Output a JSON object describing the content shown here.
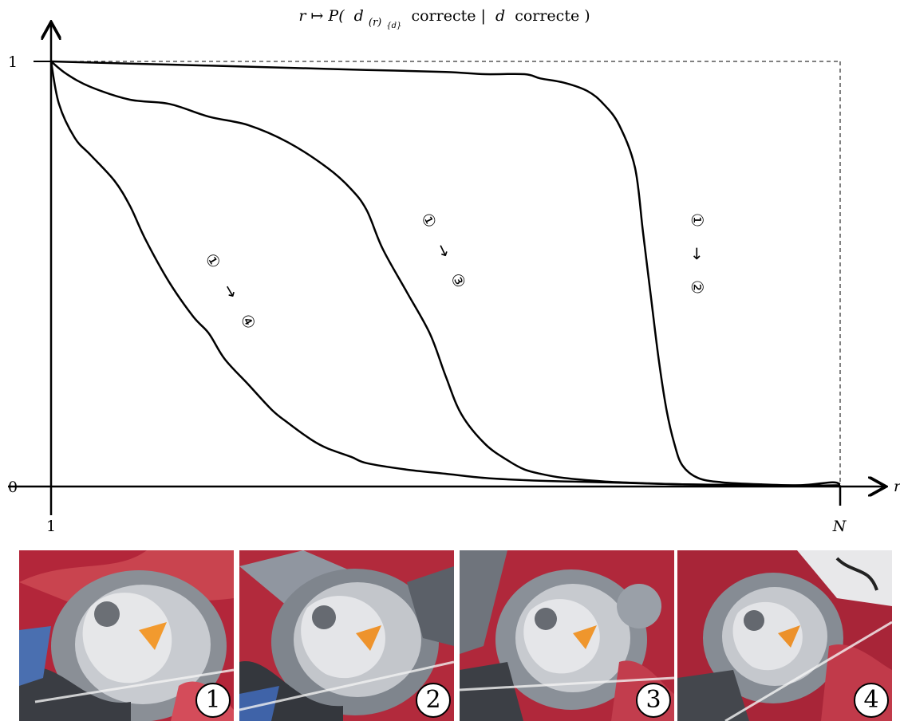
{
  "chart_data": {
    "type": "line",
    "title": {
      "map": "r ↦ P(",
      "d": "d",
      "sub_r": "(r)",
      "sub_d": "{d}",
      "mid": "correcte |",
      "d2": "d",
      "end": "correcte )"
    },
    "xlabel": "r",
    "x_ticks": [
      "1",
      "N"
    ],
    "y_ticks": [
      "0",
      "1"
    ],
    "xlim": [
      0,
      1
    ],
    "ylim": [
      0,
      1
    ],
    "grid": false,
    "series": [
      {
        "label_from": "①",
        "label_arrow": "→",
        "label_to": "④",
        "x": [
          0,
          0.01,
          0.03,
          0.05,
          0.08,
          0.1,
          0.12,
          0.15,
          0.18,
          0.2,
          0.22,
          0.25,
          0.28,
          0.3,
          0.33,
          0.35,
          0.38,
          0.4,
          0.45,
          0.5,
          0.55,
          0.6,
          0.65,
          0.7,
          0.8,
          0.9,
          0.95,
          1.0
        ],
        "y": [
          1.0,
          0.9,
          0.82,
          0.78,
          0.72,
          0.66,
          0.58,
          0.48,
          0.4,
          0.36,
          0.3,
          0.24,
          0.18,
          0.15,
          0.11,
          0.09,
          0.07,
          0.055,
          0.04,
          0.03,
          0.02,
          0.015,
          0.012,
          0.01,
          0.005,
          0.003,
          0.002,
          0.003
        ]
      },
      {
        "label_from": "①",
        "label_arrow": "→",
        "label_to": "③",
        "x": [
          0,
          0.02,
          0.05,
          0.1,
          0.15,
          0.2,
          0.25,
          0.3,
          0.35,
          0.38,
          0.4,
          0.42,
          0.45,
          0.48,
          0.5,
          0.52,
          0.55,
          0.58,
          0.6,
          0.62,
          0.65,
          0.7,
          0.75,
          0.8,
          0.9,
          1.0
        ],
        "y": [
          1.0,
          0.97,
          0.94,
          0.91,
          0.9,
          0.87,
          0.85,
          0.81,
          0.75,
          0.7,
          0.65,
          0.56,
          0.46,
          0.36,
          0.26,
          0.17,
          0.1,
          0.06,
          0.04,
          0.03,
          0.02,
          0.012,
          0.008,
          0.005,
          0.003,
          0.002
        ]
      },
      {
        "label_from": "①",
        "label_arrow": "→",
        "label_to": "②",
        "x": [
          0,
          0.1,
          0.2,
          0.3,
          0.4,
          0.5,
          0.55,
          0.6,
          0.62,
          0.65,
          0.68,
          0.7,
          0.72,
          0.74,
          0.75,
          0.76,
          0.77,
          0.78,
          0.79,
          0.8,
          0.82,
          0.85,
          0.9,
          0.95,
          0.99,
          1.0
        ],
        "y": [
          1.0,
          0.995,
          0.99,
          0.985,
          0.98,
          0.975,
          0.97,
          0.97,
          0.96,
          0.95,
          0.93,
          0.9,
          0.85,
          0.75,
          0.6,
          0.45,
          0.3,
          0.18,
          0.1,
          0.05,
          0.02,
          0.01,
          0.005,
          0.003,
          0.01,
          0.005
        ]
      }
    ]
  },
  "thumbnails": [
    {
      "number": "1"
    },
    {
      "number": "2"
    },
    {
      "number": "3"
    },
    {
      "number": "4"
    }
  ]
}
